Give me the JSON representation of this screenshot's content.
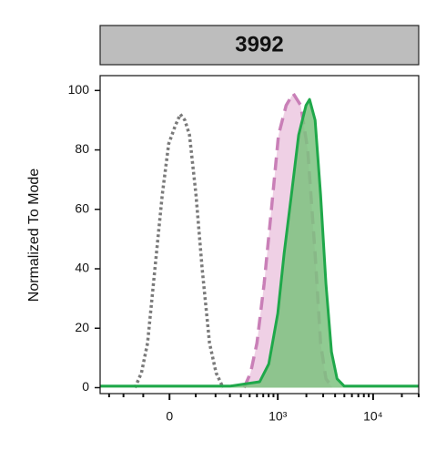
{
  "chart_data": {
    "type": "line",
    "title": "3992",
    "ylabel": "Normalized To Mode",
    "xscale": "asinh",
    "xscale_width": 148,
    "xlim": [
      -380,
      30000
    ],
    "ylim": [
      -2,
      105
    ],
    "xticks": [
      {
        "value": 0,
        "label": "0"
      },
      {
        "value": 1000,
        "label": "10³"
      },
      {
        "value": 10000,
        "label": "10⁴"
      }
    ],
    "xminor_ticks": [
      -300,
      -200,
      -100,
      100,
      200,
      300,
      400,
      500,
      600,
      700,
      800,
      900,
      2000,
      3000,
      4000,
      5000,
      6000,
      7000,
      8000,
      9000,
      20000,
      30000
    ],
    "yticks": [
      0,
      20,
      40,
      60,
      80,
      100
    ],
    "series": [
      {
        "color": "#7a7a7a",
        "style": "dotted",
        "fill": null,
        "x": [
          -138,
          -108,
          -82,
          -53,
          -26,
          -3,
          20,
          39,
          56,
          74,
          101,
          129,
          166,
          203,
          249
        ],
        "values": [
          0,
          5,
          15,
          40,
          65,
          82,
          88,
          92,
          90,
          85,
          65,
          40,
          15,
          5,
          0
        ]
      },
      {
        "color": "#c97fb7",
        "style": "dashed",
        "fill": "#ecc8e1",
        "x": [
          434,
          511,
          600,
          716,
          857,
          1018,
          1227,
          1455,
          1745,
          2068,
          2470,
          2815,
          3210,
          3760
        ],
        "values": [
          0,
          5,
          15,
          35,
          60,
          85,
          95,
          99,
          95,
          80,
          45,
          15,
          3,
          0
        ]
      },
      {
        "color": "#1fa84a",
        "style": "solid",
        "fill": "#7cc27f",
        "x": [
          -378,
          -200,
          0,
          300,
          641,
          802,
          1000,
          1165,
          1394,
          1658,
          1983,
          2160,
          2470,
          2815,
          3210,
          3670,
          4190,
          4990,
          10000,
          20000,
          30000
        ],
        "values": [
          0.5,
          0.5,
          0.5,
          0.5,
          2,
          8,
          25,
          45,
          65,
          85,
          95,
          97,
          90,
          65,
          35,
          12,
          3,
          0.5,
          0.5,
          0.5,
          0.5
        ]
      }
    ]
  }
}
